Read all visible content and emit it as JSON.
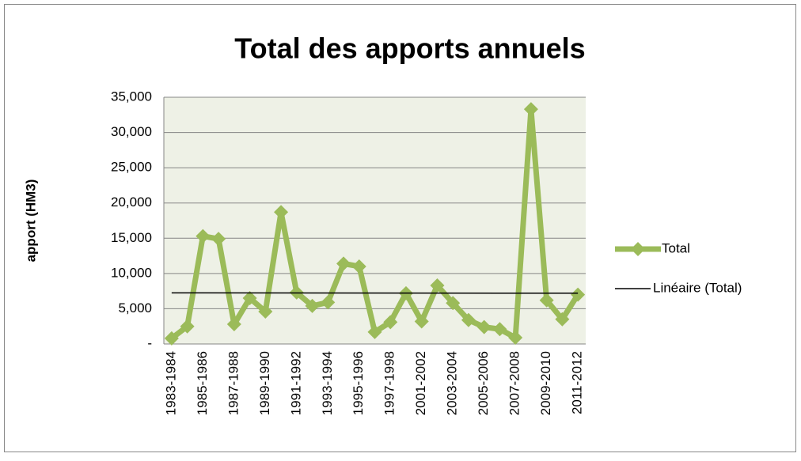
{
  "chart_data": {
    "type": "line",
    "title": "Total des apports annuels",
    "y_label": "apport (HM3)",
    "categories": [
      "1983-1984",
      null,
      "1985-1986",
      null,
      "1987-1988",
      null,
      "1989-1990",
      null,
      "1991-1992",
      null,
      "1993-1994",
      null,
      "1995-1996",
      null,
      "1997-1998",
      null,
      "2001-2002",
      null,
      "2003-2004",
      null,
      "2005-2006",
      null,
      "2007-2008",
      null,
      "2009-2010",
      null,
      "2011-2012"
    ],
    "series": [
      {
        "name": "Total",
        "color": "#9bbb59",
        "values": [
          800,
          2500,
          15300,
          14900,
          2800,
          6500,
          4600,
          18700,
          7300,
          5400,
          5900,
          11400,
          11000,
          1700,
          3100,
          7200,
          3200,
          8300,
          5800,
          3400,
          2400,
          2100,
          900,
          33300,
          6200,
          3500,
          7000
        ]
      }
    ],
    "trendline": {
      "name": "Linéaire (Total)",
      "color": "#000000"
    },
    "ylim": [
      0,
      35000
    ],
    "yticks": [
      {
        "value": 0,
        "label": "-"
      },
      {
        "value": 5000,
        "label": "5,000"
      },
      {
        "value": 10000,
        "label": "10,000"
      },
      {
        "value": 15000,
        "label": "15,000"
      },
      {
        "value": 20000,
        "label": "20,000"
      },
      {
        "value": 25000,
        "label": "25,000"
      },
      {
        "value": 30000,
        "label": "30,000"
      },
      {
        "value": 35000,
        "label": "35,000"
      }
    ],
    "grid": true,
    "legend": "right"
  }
}
